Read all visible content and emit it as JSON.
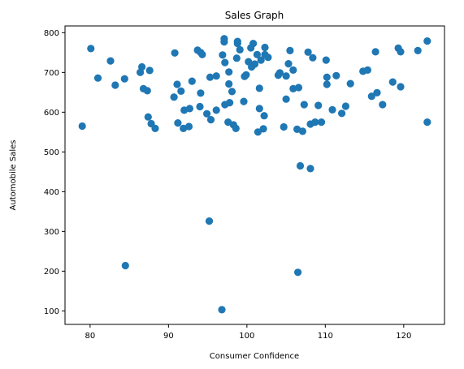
{
  "chart_data": {
    "type": "scatter",
    "title": "Sales Graph",
    "xlabel": "Consumer Confidence",
    "ylabel": "Automobile Sales",
    "xlim": [
      76.8,
      125.2
    ],
    "ylim": [
      66,
      817
    ],
    "xticks": [
      80,
      90,
      100,
      110,
      120
    ],
    "yticks": [
      100,
      200,
      300,
      400,
      500,
      600,
      700,
      800
    ],
    "grid": false,
    "marker_color": "#1f77b4",
    "points": [
      {
        "x": 79.0,
        "y": 565
      },
      {
        "x": 80.1,
        "y": 760
      },
      {
        "x": 81.0,
        "y": 686
      },
      {
        "x": 82.6,
        "y": 729
      },
      {
        "x": 83.2,
        "y": 668
      },
      {
        "x": 84.4,
        "y": 684
      },
      {
        "x": 84.5,
        "y": 214
      },
      {
        "x": 86.4,
        "y": 700
      },
      {
        "x": 86.6,
        "y": 714
      },
      {
        "x": 86.8,
        "y": 659
      },
      {
        "x": 87.3,
        "y": 654
      },
      {
        "x": 87.4,
        "y": 588
      },
      {
        "x": 87.6,
        "y": 705
      },
      {
        "x": 87.8,
        "y": 571
      },
      {
        "x": 88.3,
        "y": 559
      },
      {
        "x": 90.7,
        "y": 638
      },
      {
        "x": 90.8,
        "y": 749
      },
      {
        "x": 91.1,
        "y": 670
      },
      {
        "x": 91.2,
        "y": 573
      },
      {
        "x": 91.6,
        "y": 653
      },
      {
        "x": 91.9,
        "y": 559
      },
      {
        "x": 92.0,
        "y": 605
      },
      {
        "x": 92.6,
        "y": 564
      },
      {
        "x": 92.7,
        "y": 609
      },
      {
        "x": 93.0,
        "y": 678
      },
      {
        "x": 93.7,
        "y": 756
      },
      {
        "x": 94.0,
        "y": 614
      },
      {
        "x": 94.1,
        "y": 648
      },
      {
        "x": 94.1,
        "y": 750
      },
      {
        "x": 94.3,
        "y": 745
      },
      {
        "x": 94.9,
        "y": 596
      },
      {
        "x": 95.2,
        "y": 326
      },
      {
        "x": 95.3,
        "y": 688
      },
      {
        "x": 95.4,
        "y": 581
      },
      {
        "x": 96.1,
        "y": 691
      },
      {
        "x": 96.1,
        "y": 605
      },
      {
        "x": 96.8,
        "y": 103
      },
      {
        "x": 96.9,
        "y": 744
      },
      {
        "x": 97.1,
        "y": 777
      },
      {
        "x": 97.1,
        "y": 785
      },
      {
        "x": 97.2,
        "y": 725
      },
      {
        "x": 97.2,
        "y": 619
      },
      {
        "x": 97.6,
        "y": 575
      },
      {
        "x": 97.7,
        "y": 701
      },
      {
        "x": 97.7,
        "y": 671
      },
      {
        "x": 97.8,
        "y": 624
      },
      {
        "x": 98.1,
        "y": 652
      },
      {
        "x": 98.3,
        "y": 568
      },
      {
        "x": 98.6,
        "y": 559
      },
      {
        "x": 98.7,
        "y": 736
      },
      {
        "x": 98.8,
        "y": 773
      },
      {
        "x": 98.8,
        "y": 778
      },
      {
        "x": 99.1,
        "y": 757
      },
      {
        "x": 99.6,
        "y": 627
      },
      {
        "x": 99.7,
        "y": 690
      },
      {
        "x": 99.9,
        "y": 694
      },
      {
        "x": 100.2,
        "y": 727
      },
      {
        "x": 100.5,
        "y": 762
      },
      {
        "x": 100.6,
        "y": 714
      },
      {
        "x": 100.8,
        "y": 773
      },
      {
        "x": 101.0,
        "y": 721
      },
      {
        "x": 101.3,
        "y": 745
      },
      {
        "x": 101.4,
        "y": 550
      },
      {
        "x": 101.6,
        "y": 609
      },
      {
        "x": 101.6,
        "y": 660
      },
      {
        "x": 101.8,
        "y": 731
      },
      {
        "x": 102.1,
        "y": 558
      },
      {
        "x": 102.2,
        "y": 591
      },
      {
        "x": 102.3,
        "y": 763
      },
      {
        "x": 102.3,
        "y": 745
      },
      {
        "x": 102.7,
        "y": 738
      },
      {
        "x": 104.0,
        "y": 693
      },
      {
        "x": 104.2,
        "y": 699
      },
      {
        "x": 104.7,
        "y": 563
      },
      {
        "x": 105.0,
        "y": 633
      },
      {
        "x": 105.0,
        "y": 691
      },
      {
        "x": 105.3,
        "y": 722
      },
      {
        "x": 105.5,
        "y": 755
      },
      {
        "x": 105.9,
        "y": 659
      },
      {
        "x": 105.9,
        "y": 706
      },
      {
        "x": 106.4,
        "y": 557
      },
      {
        "x": 106.5,
        "y": 197
      },
      {
        "x": 106.6,
        "y": 662
      },
      {
        "x": 106.8,
        "y": 465
      },
      {
        "x": 107.1,
        "y": 552
      },
      {
        "x": 107.3,
        "y": 619
      },
      {
        "x": 107.8,
        "y": 751
      },
      {
        "x": 108.1,
        "y": 570
      },
      {
        "x": 108.1,
        "y": 458
      },
      {
        "x": 108.4,
        "y": 737
      },
      {
        "x": 108.7,
        "y": 575
      },
      {
        "x": 109.1,
        "y": 617
      },
      {
        "x": 109.5,
        "y": 575
      },
      {
        "x": 110.1,
        "y": 731
      },
      {
        "x": 110.2,
        "y": 688
      },
      {
        "x": 110.2,
        "y": 670
      },
      {
        "x": 110.9,
        "y": 606
      },
      {
        "x": 111.4,
        "y": 692
      },
      {
        "x": 112.1,
        "y": 597
      },
      {
        "x": 112.6,
        "y": 615
      },
      {
        "x": 113.2,
        "y": 672
      },
      {
        "x": 114.8,
        "y": 703
      },
      {
        "x": 115.4,
        "y": 706
      },
      {
        "x": 115.9,
        "y": 640
      },
      {
        "x": 116.4,
        "y": 752
      },
      {
        "x": 116.6,
        "y": 649
      },
      {
        "x": 117.3,
        "y": 619
      },
      {
        "x": 118.6,
        "y": 676
      },
      {
        "x": 119.3,
        "y": 761
      },
      {
        "x": 119.6,
        "y": 664
      },
      {
        "x": 119.6,
        "y": 752
      },
      {
        "x": 121.8,
        "y": 755
      },
      {
        "x": 123.0,
        "y": 779
      },
      {
        "x": 123.0,
        "y": 575
      }
    ]
  }
}
